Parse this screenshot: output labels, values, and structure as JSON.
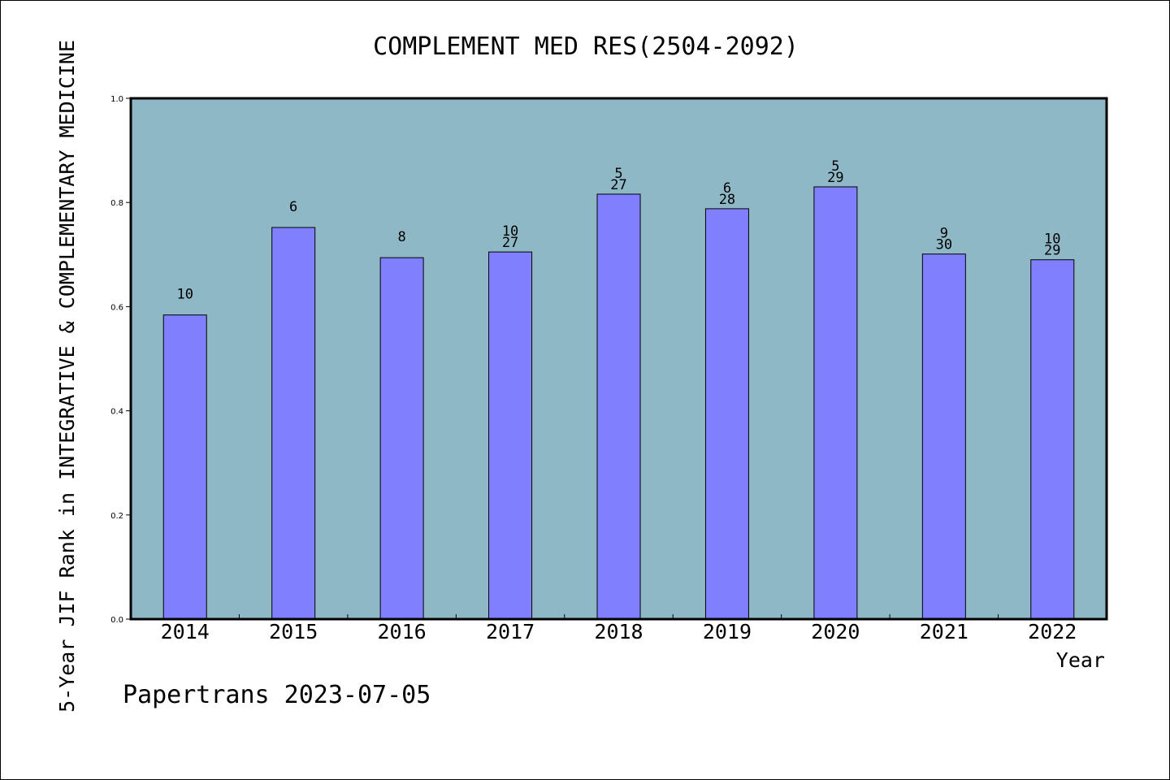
{
  "chart_data": {
    "type": "bar",
    "title": "COMPLEMENT MED RES(2504-2092)",
    "ylabel": "5-Year JIF Rank in INTEGRATIVE & COMPLEMENTARY MEDICINE",
    "xlabel": "Year",
    "ylim": [
      0,
      1.0
    ],
    "yticks": [
      "0.0",
      "0.2",
      "0.4",
      "0.6",
      "0.8",
      "1.0"
    ],
    "categories": [
      "2014",
      "2015",
      "2016",
      "2017",
      "2018",
      "2019",
      "2020",
      "2021",
      "2022"
    ],
    "values": [
      0.584,
      0.752,
      0.694,
      0.705,
      0.816,
      0.788,
      0.83,
      0.701,
      0.69
    ],
    "labels_top": [
      "10",
      "6",
      "8",
      "10",
      "5",
      "6",
      "5",
      "9",
      "10"
    ],
    "labels_bottom": [
      "",
      "",
      "",
      "27",
      "27",
      "28",
      "29",
      "30",
      "29"
    ],
    "grid": false,
    "colors": {
      "plot_background": "#8fb8c6",
      "bar_fill": "#8080ff",
      "bar_stroke": "#000000"
    }
  },
  "footer": {
    "credit": "Papertrans 2023-07-05"
  }
}
